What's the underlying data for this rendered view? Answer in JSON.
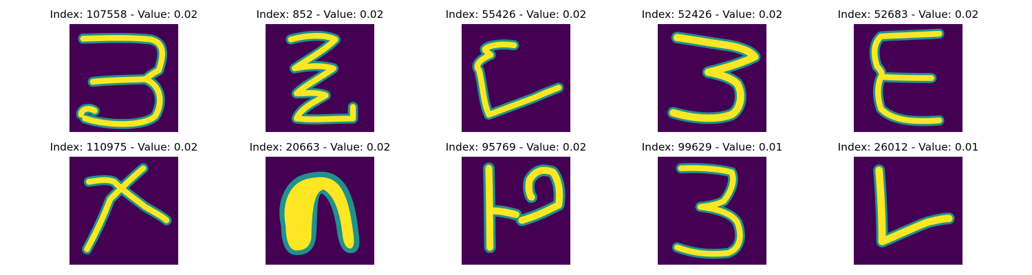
{
  "figure": {
    "colormap": {
      "background": "#440154",
      "mid": "#21918c",
      "high": "#fde725"
    },
    "panels": [
      {
        "title": "Index: 107558 - Value: 0.02",
        "index": 107558,
        "value": 0.02
      },
      {
        "title": "Index: 852 - Value: 0.02",
        "index": 852,
        "value": 0.02
      },
      {
        "title": "Index: 55426 - Value: 0.02",
        "index": 55426,
        "value": 0.02
      },
      {
        "title": "Index: 52426 - Value: 0.02",
        "index": 52426,
        "value": 0.02
      },
      {
        "title": "Index: 52683 - Value: 0.02",
        "index": 52683,
        "value": 0.02
      },
      {
        "title": "Index: 110975 - Value: 0.02",
        "index": 110975,
        "value": 0.02
      },
      {
        "title": "Index: 20663 - Value: 0.02",
        "index": 20663,
        "value": 0.02
      },
      {
        "title": "Index: 95769 - Value: 0.02",
        "index": 95769,
        "value": 0.02
      },
      {
        "title": "Index: 99629 - Value: 0.01",
        "index": 99629,
        "value": 0.01
      },
      {
        "title": "Index: 26012 - Value: 0.01",
        "index": 26012,
        "value": 0.01
      }
    ]
  }
}
